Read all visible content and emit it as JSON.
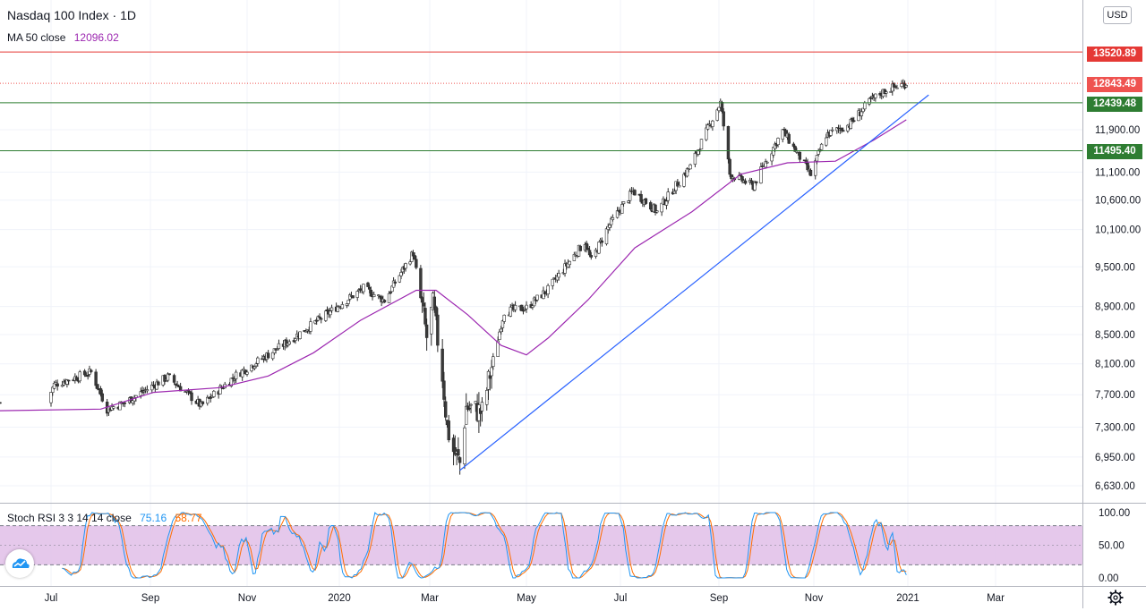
{
  "header": {
    "title": "Nasdaq 100 Index · 1D",
    "ma_label": "MA 50 close",
    "ma_value": "12096.02",
    "stoch_label": "Stoch RSI 3 3 14 14 close",
    "stoch_k_value": "75.16",
    "stoch_d_value": "58.77",
    "currency": "USD"
  },
  "colors": {
    "up": "#26a69a",
    "down": "#ef5350",
    "candle_up_body": "#ffffff",
    "candle_outline": "#2b2b2b",
    "ma": "#9c27b0",
    "trendline": "#2962ff",
    "resistance": "#e53935",
    "support": "#4caf50",
    "stoch_k": "#2196f3",
    "stoch_d": "#ff6d00",
    "stoch_band": "#e1bee7",
    "last_price": "#ef5350"
  },
  "chart_data": [
    {
      "type": "candlestick",
      "title": "Nasdaq 100 Index · 1D",
      "x_ticks": [
        "Jul",
        "Sep",
        "Nov",
        "2020",
        "Mar",
        "May",
        "Jul",
        "Sep",
        "Nov",
        "2021",
        "Mar"
      ],
      "y_ticks": [
        6630,
        6950,
        7300,
        7700,
        8100,
        8500,
        8900,
        9500,
        10100,
        10600,
        11100,
        11900
      ],
      "ylim": [
        6420,
        14100
      ],
      "price_path": [
        [
          "2019-06-28",
          7600
        ],
        [
          "2019-07-03",
          7830
        ],
        [
          "2019-07-26",
          7990
        ],
        [
          "2019-08-05",
          7520
        ],
        [
          "2019-08-16",
          7600
        ],
        [
          "2019-09-12",
          7930
        ],
        [
          "2019-10-03",
          7560
        ],
        [
          "2019-10-25",
          7950
        ],
        [
          "2019-11-26",
          8370
        ],
        [
          "2019-12-20",
          8730
        ],
        [
          "2020-01-17",
          9170
        ],
        [
          "2020-01-31",
          8990
        ],
        [
          "2020-02-19",
          9720
        ],
        [
          "2020-02-28",
          8460
        ],
        [
          "2020-03-03",
          8910
        ],
        [
          "2020-03-09",
          7950
        ],
        [
          "2020-03-12",
          7290
        ],
        [
          "2020-03-16",
          7020
        ],
        [
          "2020-03-20",
          6880
        ],
        [
          "2020-03-24",
          7550
        ],
        [
          "2020-04-03",
          7480
        ],
        [
          "2020-04-17",
          8830
        ],
        [
          "2020-05-01",
          8880
        ],
        [
          "2020-05-15",
          9150
        ],
        [
          "2020-06-08",
          9900
        ],
        [
          "2020-06-12",
          9590
        ],
        [
          "2020-06-23",
          10140
        ],
        [
          "2020-07-09",
          10760
        ],
        [
          "2020-07-24",
          10400
        ],
        [
          "2020-08-14",
          11200
        ],
        [
          "2020-09-02",
          12440
        ],
        [
          "2020-09-08",
          11060
        ],
        [
          "2020-09-23",
          10850
        ],
        [
          "2020-10-12",
          11880
        ],
        [
          "2020-10-30",
          11050
        ],
        [
          "2020-11-09",
          11800
        ],
        [
          "2020-11-24",
          12000
        ],
        [
          "2020-12-08",
          12490
        ],
        [
          "2020-12-18",
          12710
        ],
        [
          "2020-12-31",
          12843.49
        ]
      ],
      "ma50": {
        "name": "MA 50 close",
        "last": 12096.02,
        "points": [
          [
            "2019-06-28",
            7500
          ],
          [
            "2019-08-01",
            7520
          ],
          [
            "2019-09-03",
            7730
          ],
          [
            "2019-10-15",
            7790
          ],
          [
            "2019-11-15",
            7940
          ],
          [
            "2019-12-15",
            8250
          ],
          [
            "2020-01-15",
            8700
          ],
          [
            "2020-02-21",
            9140
          ],
          [
            "2020-03-05",
            9140
          ],
          [
            "2020-03-25",
            8780
          ],
          [
            "2020-04-15",
            8350
          ],
          [
            "2020-05-01",
            8220
          ],
          [
            "2020-05-15",
            8450
          ],
          [
            "2020-06-10",
            9000
          ],
          [
            "2020-07-10",
            9800
          ],
          [
            "2020-08-15",
            10400
          ],
          [
            "2020-09-15",
            11060
          ],
          [
            "2020-10-15",
            11270
          ],
          [
            "2020-11-15",
            11300
          ],
          [
            "2020-12-10",
            11700
          ],
          [
            "2020-12-31",
            12096.02
          ]
        ]
      },
      "horizontal_levels": [
        {
          "value": 13520.89,
          "label": "13520.89",
          "kind": "resistance"
        },
        {
          "value": 12439.48,
          "label": "12439.48",
          "kind": "support"
        },
        {
          "value": 11495.4,
          "label": "11495.40",
          "kind": "support"
        }
      ],
      "last_price": {
        "value": 12843.49,
        "label": "12843.49"
      },
      "trendline": {
        "from": [
          "2020-03-20",
          6800
        ],
        "to": [
          "2021-01-15",
          12600
        ]
      }
    },
    {
      "type": "line",
      "title": "Stoch RSI 3 3 14 14 close",
      "y_ticks": [
        0,
        50,
        100
      ],
      "ylim": [
        -3,
        103
      ],
      "bands": [
        20,
        80
      ],
      "series": [
        {
          "name": "K",
          "last": 75.16
        },
        {
          "name": "D",
          "last": 58.77
        }
      ]
    }
  ]
}
